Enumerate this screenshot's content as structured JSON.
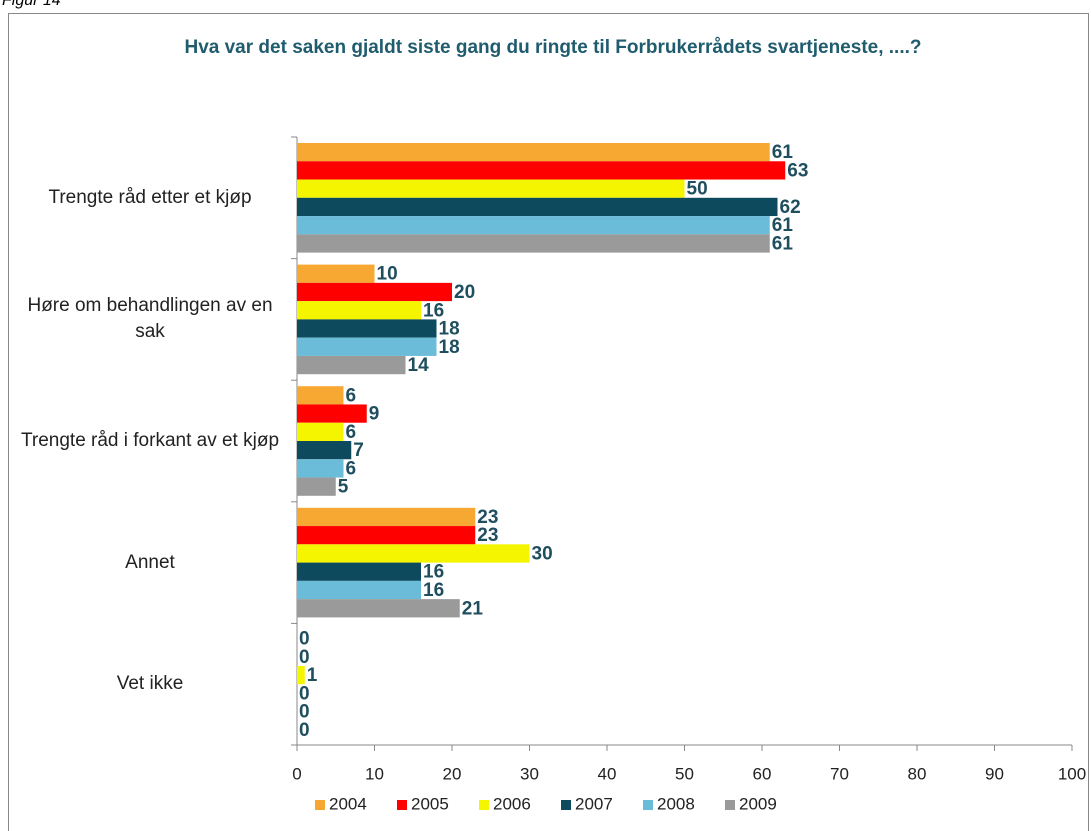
{
  "figure_label": "Figur 14",
  "chart_data": {
    "type": "bar",
    "orientation": "horizontal",
    "title": "Hva var det saken gjaldt siste gang du ringte til Forbrukerrådets svartjeneste, ....?",
    "categories": [
      "Trengte råd etter et kjøp",
      "Høre om behandlingen av en sak",
      "Trengte råd i forkant av et kjøp",
      "Annet",
      "Vet ikke"
    ],
    "series": [
      {
        "name": "2004",
        "color": "#f7a833",
        "values": [
          61,
          10,
          6,
          23,
          0
        ]
      },
      {
        "name": "2005",
        "color": "#ff0000",
        "values": [
          63,
          20,
          9,
          23,
          0
        ]
      },
      {
        "name": "2006",
        "color": "#f5f500",
        "values": [
          50,
          16,
          6,
          30,
          1
        ]
      },
      {
        "name": "2007",
        "color": "#0d4a5e",
        "values": [
          62,
          18,
          7,
          16,
          0
        ]
      },
      {
        "name": "2008",
        "color": "#6bbcd8",
        "values": [
          61,
          18,
          6,
          16,
          0
        ]
      },
      {
        "name": "2009",
        "color": "#9a9a9a",
        "values": [
          61,
          14,
          5,
          21,
          0
        ]
      }
    ],
    "xlim": [
      0,
      100
    ],
    "xticks": [
      0,
      10,
      20,
      30,
      40,
      50,
      60,
      70,
      80,
      90,
      100
    ],
    "legend": "bottom",
    "data_labels": true,
    "grid": false
  }
}
